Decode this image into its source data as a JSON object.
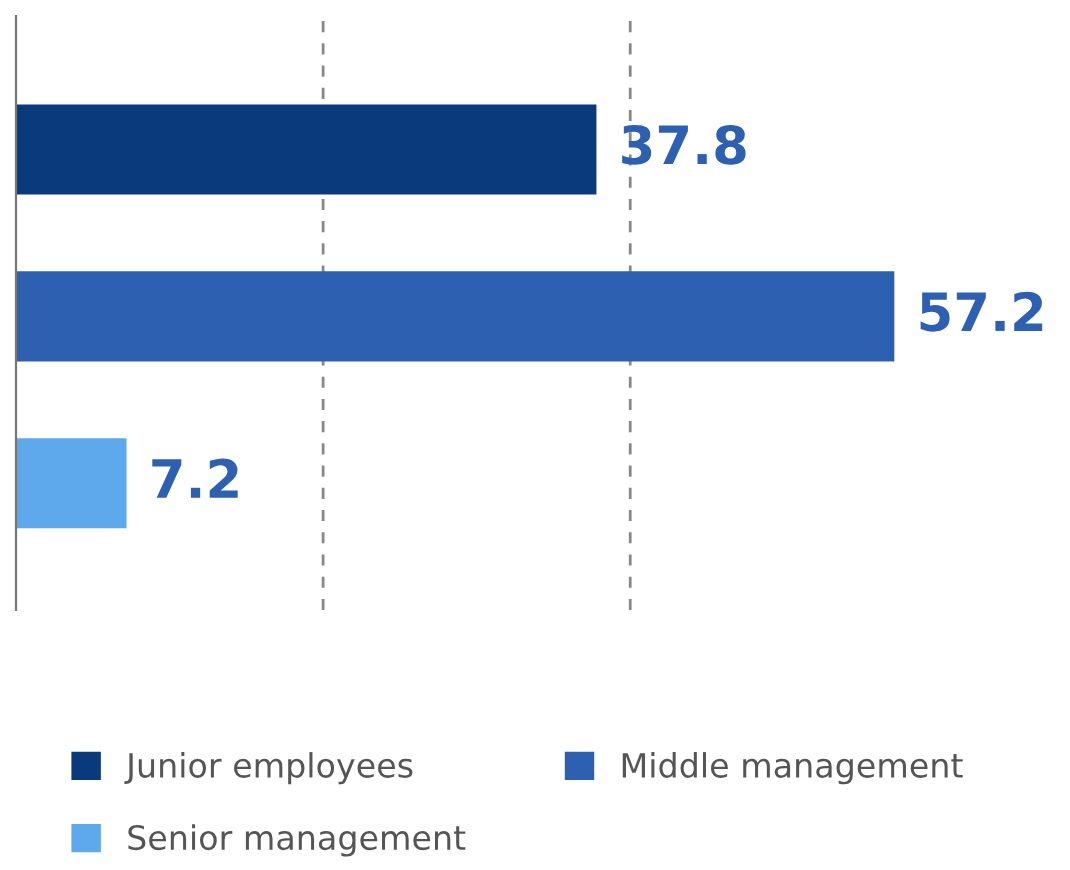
{
  "chart_data": {
    "type": "bar",
    "orientation": "horizontal",
    "categories": [
      null,
      null,
      null
    ],
    "series": [
      {
        "name": "Junior employees",
        "color": "#0b3a7c",
        "values": [
          37.8,
          null,
          null
        ]
      },
      {
        "name": "Middle management",
        "color": "#2d60b0",
        "values": [
          null,
          57.2,
          null
        ]
      },
      {
        "name": "Senior management",
        "color": "#5ea9ec",
        "values": [
          null,
          null,
          7.2
        ]
      }
    ],
    "ref_lines": [
      {
        "axis": "x",
        "value": 20,
        "color": "#888888",
        "line_style": "dashed"
      },
      {
        "axis": "x",
        "value": 40,
        "color": "#888888",
        "line_style": "dashed"
      }
    ],
    "stacked": true,
    "data_labels": true,
    "legend": "bottom"
  }
}
